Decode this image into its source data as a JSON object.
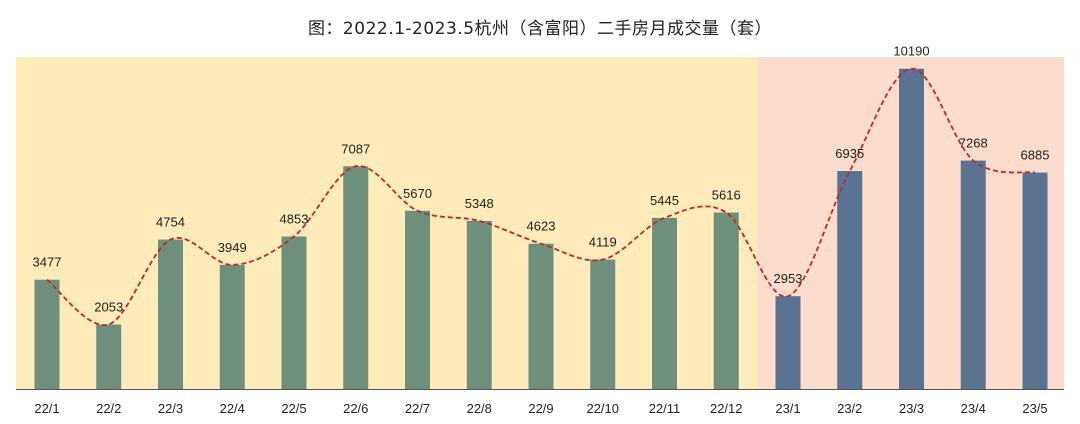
{
  "chart_data": {
    "type": "bar",
    "title": "图：2022.1-2023.5杭州（含富阳）二手房月成交量（套）",
    "categories": [
      "22/1",
      "22/2",
      "22/3",
      "22/4",
      "22/5",
      "22/6",
      "22/7",
      "22/8",
      "22/9",
      "22/10",
      "22/11",
      "22/12",
      "23/1",
      "23/2",
      "23/3",
      "23/4",
      "23/5"
    ],
    "values": [
      3477,
      2053,
      4754,
      3949,
      4853,
      7087,
      5670,
      5348,
      4623,
      4119,
      5445,
      5616,
      2953,
      6935,
      10190,
      7268,
      6885
    ],
    "value_labels": [
      "3477",
      "2053",
      "4754",
      "3949",
      "4853",
      "7087",
      "5670",
      "5348",
      "4623",
      "4119",
      "5445",
      "5616",
      "2953",
      "6935",
      "10190",
      "7268",
      "6885"
    ],
    "trend_line": "smoothed dashed line through bar tops",
    "ylim": [
      0,
      10500
    ],
    "grid": false,
    "xlabel": "",
    "ylabel": "",
    "background_regions": [
      {
        "period": "2022",
        "from": "22/1",
        "to": "22/12",
        "color": "#fdebb9"
      },
      {
        "period": "2023",
        "from": "23/1",
        "to": "23/5",
        "color": "#fbdccd"
      }
    ],
    "colors": {
      "bar_2022": "#6e8f7c",
      "bar_2023": "#5a7392",
      "trend_line": "#c0282a",
      "axis": "#555555"
    }
  }
}
